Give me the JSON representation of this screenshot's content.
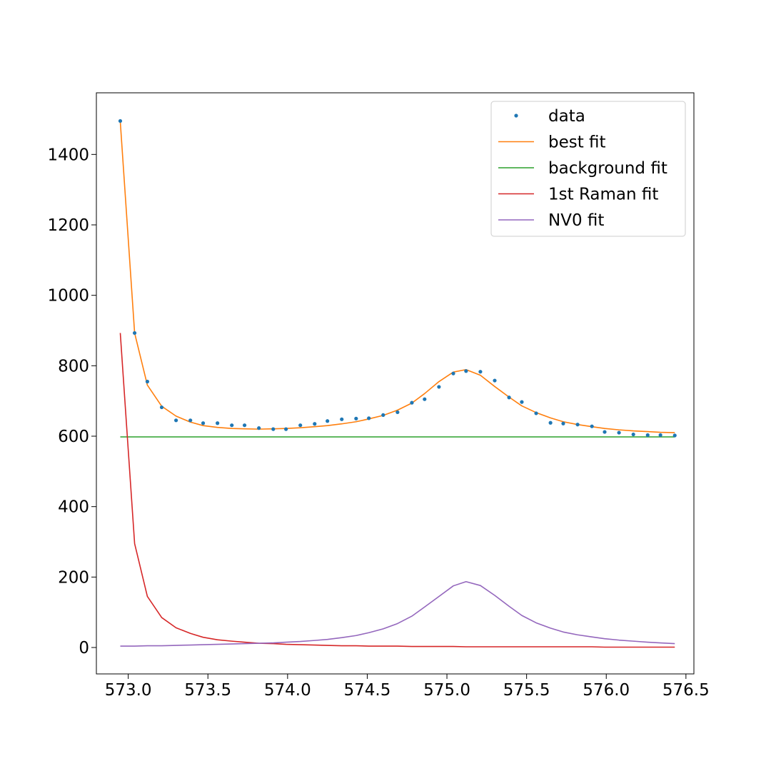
{
  "chart_data": {
    "type": "line",
    "xlim": [
      572.8,
      576.55
    ],
    "ylim": [
      -75,
      1575
    ],
    "xticks": [
      573.0,
      573.5,
      574.0,
      574.5,
      575.0,
      575.5,
      576.0,
      576.5
    ],
    "xtick_labels": [
      "573.0",
      "573.5",
      "574.0",
      "574.5",
      "575.0",
      "575.5",
      "576.0",
      "576.5"
    ],
    "yticks": [
      0,
      200,
      400,
      600,
      800,
      1000,
      1200,
      1400
    ],
    "ytick_labels": [
      "0",
      "200",
      "400",
      "600",
      "800",
      "1000",
      "1200",
      "1400"
    ],
    "grid": false,
    "legend_position": "top-right",
    "x": [
      572.95,
      573.04,
      573.12,
      573.21,
      573.3,
      573.39,
      573.47,
      573.56,
      573.65,
      573.73,
      573.82,
      573.91,
      573.99,
      574.08,
      574.17,
      574.25,
      574.34,
      574.43,
      574.51,
      574.6,
      574.69,
      574.78,
      574.86,
      574.95,
      575.04,
      575.12,
      575.21,
      575.3,
      575.39,
      575.47,
      575.56,
      575.65,
      575.73,
      575.82,
      575.91,
      575.99,
      576.08,
      576.17,
      576.26,
      576.34,
      576.43
    ],
    "series": [
      {
        "name": "data",
        "kind": "scatter",
        "color": "#1f77b4",
        "values": [
          1495,
          893,
          755,
          682,
          645,
          645,
          637,
          637,
          631,
          631,
          623,
          620,
          620,
          631,
          635,
          643,
          648,
          650,
          651,
          660,
          668,
          695,
          705,
          740,
          778,
          785,
          783,
          758,
          710,
          697,
          665,
          638,
          636,
          633,
          628,
          612,
          610,
          605,
          603,
          603,
          602
        ]
      },
      {
        "name": "best fit",
        "kind": "line",
        "color": "#ff7f0e",
        "values": [
          1493,
          893,
          745,
          685,
          657,
          640,
          630,
          625,
          622,
          621,
          620,
          621,
          622,
          624,
          627,
          630,
          635,
          641,
          649,
          659,
          674,
          694,
          721,
          755,
          782,
          789,
          773,
          741,
          711,
          686,
          667,
          652,
          641,
          633,
          627,
          622,
          618,
          615,
          613,
          611,
          610
        ]
      },
      {
        "name": "background fit",
        "kind": "line",
        "color": "#2ca02c",
        "values": [
          598,
          598,
          598,
          598,
          598,
          598,
          598,
          598,
          598,
          598,
          598,
          598,
          598,
          598,
          598,
          598,
          598,
          598,
          598,
          598,
          598,
          598,
          598,
          598,
          598,
          598,
          598,
          598,
          598,
          598,
          598,
          598,
          598,
          598,
          598,
          598,
          598,
          598,
          598,
          598,
          598
        ]
      },
      {
        "name": "1st Raman fit",
        "kind": "line",
        "color": "#d62728",
        "values": [
          893,
          295,
          145,
          85,
          56,
          40,
          29,
          22,
          18,
          15,
          12,
          11,
          9,
          8,
          7,
          6,
          5,
          5,
          4,
          4,
          4,
          3,
          3,
          3,
          3,
          2,
          2,
          2,
          2,
          2,
          2,
          2,
          2,
          2,
          2,
          1,
          1,
          1,
          1,
          1,
          1
        ]
      },
      {
        "name": "NV0 fit",
        "kind": "line",
        "color": "#9467bd",
        "values": [
          4,
          4,
          5,
          5,
          6,
          7,
          8,
          9,
          10,
          11,
          12,
          13,
          15,
          17,
          20,
          23,
          28,
          34,
          42,
          53,
          68,
          89,
          115,
          145,
          175,
          187,
          176,
          148,
          117,
          91,
          70,
          55,
          44,
          36,
          30,
          25,
          21,
          18,
          15,
          13,
          11
        ]
      }
    ]
  }
}
